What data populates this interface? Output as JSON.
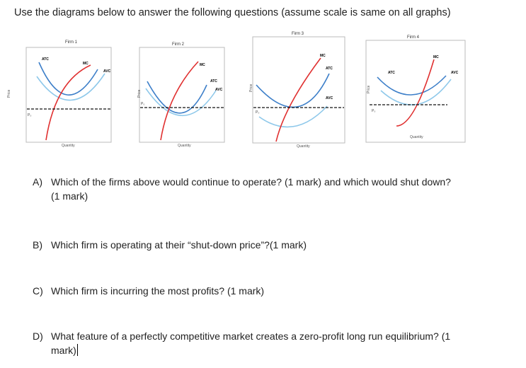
{
  "intro": "Use the diagrams below to answer the following questions (assume scale is same on all graphs)",
  "graph_labels": {
    "price": "Price",
    "quantity": "Quantity",
    "p0": "P₀",
    "mc": "MC",
    "atc": "ATC",
    "avc": "AVC"
  },
  "firms": [
    {
      "title": "Firm 1"
    },
    {
      "title": "Firm 2"
    },
    {
      "title": "Firm 3"
    },
    {
      "title": "Firm 4"
    }
  ],
  "colors": {
    "mc": "#e03030",
    "atc": "#3d7fc9",
    "avc": "#8ec8ea",
    "p0_line": "#111111"
  },
  "questions": [
    {
      "letter": "A)",
      "line1": "Which of the firms above would continue to operate? (1 mark) and which would shut down?",
      "line2": "(1 mark)"
    },
    {
      "letter": "B)",
      "line1": "Which firm is operating at their “shut-down price”?(1 mark)"
    },
    {
      "letter": "C)",
      "line1": "Which firm is incurring the most profits? (1 mark)"
    },
    {
      "letter": "D)",
      "line1": "What feature of a perfectly competitive market creates a zero-profit long run equilibrium? (1",
      "line2": "mark)"
    }
  ]
}
